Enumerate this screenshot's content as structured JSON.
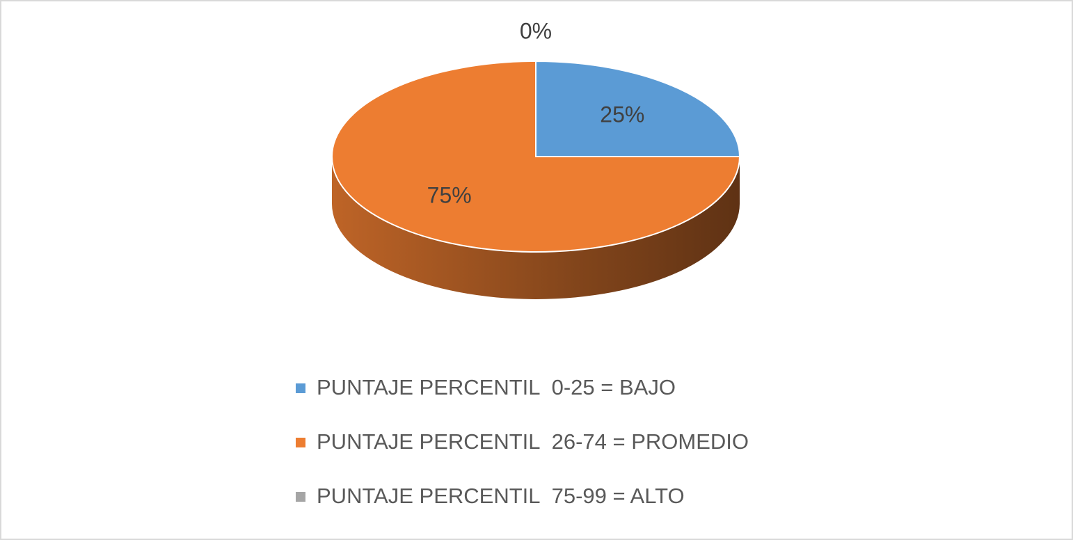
{
  "chart_data": {
    "type": "pie3d",
    "categories": [
      "PUNTAJE PERCENTIL  0-25 = BAJO",
      "PUNTAJE PERCENTIL  26-74 = PROMEDIO",
      "PUNTAJE PERCENTIL  75-99 = ALTO"
    ],
    "values": [
      25,
      75,
      0
    ],
    "value_labels": [
      "25%",
      "75%",
      "0%"
    ],
    "colors": [
      "#5b9bd5",
      "#ed7d31",
      "#a5a5a5"
    ],
    "legend": "bottom"
  }
}
